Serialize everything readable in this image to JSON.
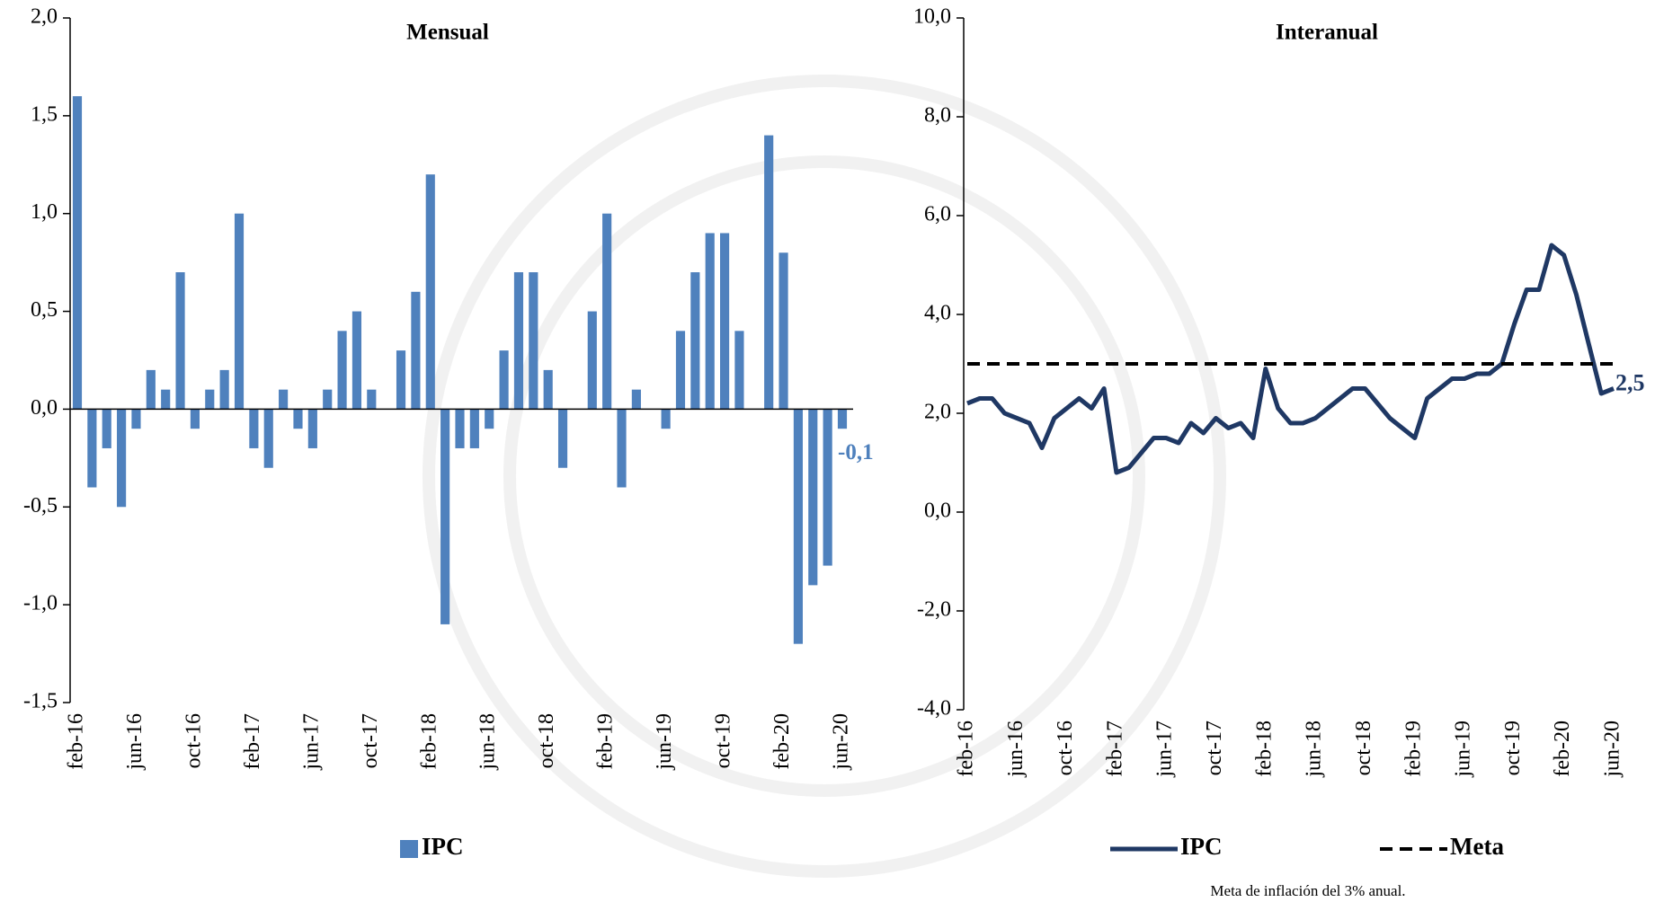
{
  "chart_data": [
    {
      "type": "bar",
      "title": "Mensual",
      "categories": [
        "feb-16",
        null,
        null,
        null,
        "jun-16",
        null,
        null,
        null,
        "oct-16",
        null,
        null,
        null,
        "feb-17",
        null,
        null,
        null,
        "jun-17",
        null,
        null,
        null,
        "oct-17",
        null,
        null,
        null,
        "feb-18",
        null,
        null,
        null,
        "jun-18",
        null,
        null,
        null,
        "oct-18",
        null,
        null,
        null,
        "feb-19",
        null,
        null,
        null,
        "jun-19",
        null,
        null,
        null,
        "oct-19",
        null,
        null,
        null,
        "feb-20",
        null,
        null,
        null,
        "jun-20"
      ],
      "series": [
        {
          "name": "IPC",
          "color": "#4f81bd",
          "values": [
            1.6,
            -0.4,
            -0.2,
            -0.5,
            -0.1,
            0.2,
            0.1,
            0.7,
            -0.1,
            0.1,
            0.2,
            1.0,
            -0.2,
            -0.3,
            0.1,
            -0.1,
            -0.2,
            0.1,
            0.4,
            0.5,
            0.1,
            0.0,
            0.3,
            0.6,
            1.2,
            -1.1,
            -0.2,
            -0.2,
            -0.1,
            0.3,
            0.7,
            0.7,
            0.2,
            -0.3,
            0.0,
            0.5,
            1.0,
            -0.4,
            0.1,
            0.0,
            -0.1,
            0.4,
            0.7,
            0.9,
            0.9,
            0.4,
            0.0,
            1.4,
            0.8,
            -1.2,
            -0.9,
            -0.8,
            -0.1
          ],
          "value_labels": [
            null,
            null,
            null,
            null,
            null,
            null,
            null,
            null,
            null,
            null,
            null,
            null,
            null,
            null,
            null,
            null,
            null,
            null,
            null,
            null,
            null,
            null,
            null,
            null,
            null,
            null,
            null,
            null,
            null,
            null,
            null,
            null,
            null,
            null,
            null,
            null,
            null,
            null,
            null,
            null,
            null,
            null,
            null,
            null,
            null,
            null,
            null,
            null,
            null,
            null,
            null,
            null,
            "-0,1"
          ]
        }
      ],
      "ylim": [
        -1.5,
        2.0
      ],
      "yticks": [
        {
          "value": -1.5,
          "label": "-1,5"
        },
        {
          "value": -1.0,
          "label": "-1,0"
        },
        {
          "value": -0.5,
          "label": "-0,5"
        },
        {
          "value": 0,
          "label": "0,0"
        },
        {
          "value": 0.5,
          "label": "0,5"
        },
        {
          "value": 1.0,
          "label": "1,0"
        },
        {
          "value": 1.5,
          "label": "1,5"
        },
        {
          "value": 2.0,
          "label": "2,0"
        }
      ],
      "legend": "bottom"
    },
    {
      "type": "line",
      "title": "Interanual",
      "categories": [
        "feb-16",
        null,
        null,
        null,
        "jun-16",
        null,
        null,
        null,
        "oct-16",
        null,
        null,
        null,
        "feb-17",
        null,
        null,
        null,
        "jun-17",
        null,
        null,
        null,
        "oct-17",
        null,
        null,
        null,
        "feb-18",
        null,
        null,
        null,
        "jun-18",
        null,
        null,
        null,
        "oct-18",
        null,
        null,
        null,
        "feb-19",
        null,
        null,
        null,
        "jun-19",
        null,
        null,
        null,
        "oct-19",
        null,
        null,
        null,
        "feb-20",
        null,
        null,
        null,
        "jun-20"
      ],
      "series": [
        {
          "name": "IPC",
          "color": "#1f3864",
          "values": [
            2.2,
            2.3,
            2.3,
            2.0,
            1.9,
            1.8,
            1.3,
            1.9,
            2.1,
            2.3,
            2.1,
            2.5,
            0.8,
            0.9,
            1.2,
            1.5,
            1.5,
            1.4,
            1.8,
            1.6,
            1.9,
            1.7,
            1.8,
            1.5,
            2.9,
            2.1,
            1.8,
            1.8,
            1.9,
            2.1,
            2.3,
            2.5,
            2.5,
            2.2,
            1.9,
            1.7,
            1.5,
            2.3,
            2.5,
            2.7,
            2.7,
            2.8,
            2.8,
            3.0,
            3.8,
            4.5,
            4.5,
            5.4,
            5.2,
            4.4,
            3.4,
            2.4,
            2.5
          ],
          "value_labels": [
            null,
            null,
            null,
            null,
            null,
            null,
            null,
            null,
            null,
            null,
            null,
            null,
            null,
            null,
            null,
            null,
            null,
            null,
            null,
            null,
            null,
            null,
            null,
            null,
            null,
            null,
            null,
            null,
            null,
            null,
            null,
            null,
            null,
            null,
            null,
            null,
            null,
            null,
            null,
            null,
            null,
            null,
            null,
            null,
            null,
            null,
            null,
            null,
            null,
            null,
            null,
            null,
            "2,5"
          ]
        },
        {
          "name": "Meta",
          "color": "#000000",
          "dashed": true,
          "values": [
            3,
            3,
            3,
            3,
            3,
            3,
            3,
            3,
            3,
            3,
            3,
            3,
            3,
            3,
            3,
            3,
            3,
            3,
            3,
            3,
            3,
            3,
            3,
            3,
            3,
            3,
            3,
            3,
            3,
            3,
            3,
            3,
            3,
            3,
            3,
            3,
            3,
            3,
            3,
            3,
            3,
            3,
            3,
            3,
            3,
            3,
            3,
            3,
            3,
            3,
            3,
            3,
            3
          ]
        }
      ],
      "ylim": [
        -4.0,
        10.0
      ],
      "yticks": [
        {
          "value": -4,
          "label": "-4,0"
        },
        {
          "value": -2,
          "label": "-2,0"
        },
        {
          "value": 0,
          "label": "0,0"
        },
        {
          "value": 2,
          "label": "2,0"
        },
        {
          "value": 4,
          "label": "4,0"
        },
        {
          "value": 6,
          "label": "6,0"
        },
        {
          "value": 8,
          "label": "8,0"
        },
        {
          "value": 10,
          "label": "10,0"
        }
      ],
      "legend": "bottom",
      "note": "Meta de inflación del 3% anual."
    }
  ]
}
